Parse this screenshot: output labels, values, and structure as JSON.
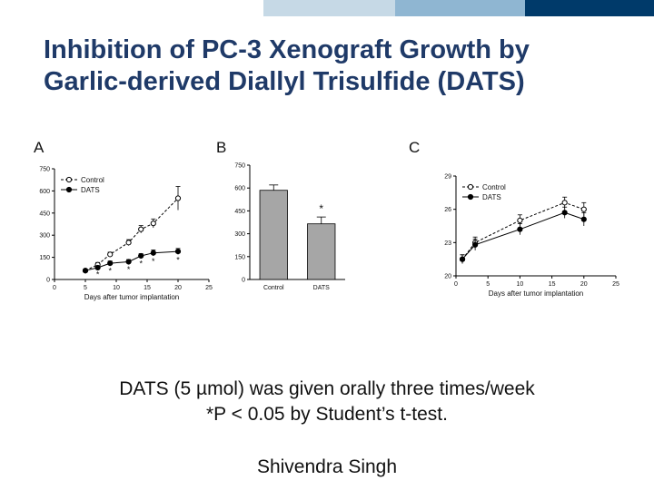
{
  "header": {
    "title_line1": "Inhibition of PC-3 Xenograft Growth by",
    "title_line2": "Garlic-derived Diallyl Trisulfide (DATS)",
    "bar_colors": [
      "#ffffff",
      "#c6d9e6",
      "#8fb6d2",
      "#003a6a"
    ]
  },
  "panels": {
    "a": "A",
    "b": "B",
    "c": "C"
  },
  "footer": {
    "line1": "DATS (5 µmol) was given orally three times/week",
    "line2": "*P < 0.05 by Student’s t-test.",
    "author": "Shivendra Singh"
  },
  "chart_data": [
    {
      "id": "A",
      "type": "line",
      "xlabel": "Days after tumor implantation",
      "xlim": [
        0,
        25
      ],
      "xticks": [
        0,
        5,
        10,
        15,
        20,
        25
      ],
      "ylim": [
        0,
        750
      ],
      "yticks": [
        0,
        150,
        300,
        450,
        600,
        750
      ],
      "legend": [
        "Control",
        "DATS"
      ],
      "legend_position": "top-left",
      "x": [
        5,
        7,
        9,
        12,
        14,
        16,
        20
      ],
      "series": [
        {
          "name": "Control",
          "marker": "open-circle",
          "values": [
            60,
            100,
            170,
            250,
            340,
            380,
            550
          ],
          "errors": [
            10,
            15,
            15,
            20,
            25,
            30,
            80
          ]
        },
        {
          "name": "DATS",
          "marker": "filled-circle",
          "values": [
            60,
            80,
            110,
            120,
            160,
            180,
            190
          ],
          "errors": [
            10,
            10,
            15,
            15,
            15,
            20,
            20
          ]
        }
      ],
      "significance_marker": "*",
      "significant_x": [
        7,
        9,
        12,
        14,
        16,
        20
      ]
    },
    {
      "id": "B",
      "type": "bar",
      "categories": [
        "Control",
        "DATS"
      ],
      "values": [
        585,
        365
      ],
      "errors": [
        35,
        45
      ],
      "ylim": [
        0,
        750
      ],
      "yticks": [
        0,
        150,
        300,
        450,
        600,
        750
      ],
      "significance_marker": "*",
      "significant_categories": [
        "DATS"
      ]
    },
    {
      "id": "C",
      "type": "line",
      "xlabel": "Days after tumor implantation",
      "xlim": [
        0,
        25
      ],
      "xticks": [
        0,
        5,
        10,
        15,
        20,
        25
      ],
      "ylim": [
        20,
        29
      ],
      "yticks": [
        20,
        23,
        26,
        29
      ],
      "legend": [
        "Control",
        "DATS"
      ],
      "legend_position": "top-left",
      "x": [
        1,
        3,
        10,
        17,
        20
      ],
      "series": [
        {
          "name": "Control",
          "marker": "open-circle",
          "values": [
            21.5,
            23,
            25,
            26.6,
            26
          ],
          "errors": [
            0.4,
            0.5,
            0.5,
            0.5,
            0.6
          ]
        },
        {
          "name": "DATS",
          "marker": "filled-circle",
          "values": [
            21.5,
            22.8,
            24.2,
            25.7,
            25.1
          ],
          "errors": [
            0.4,
            0.5,
            0.5,
            0.5,
            0.6
          ]
        }
      ]
    }
  ]
}
